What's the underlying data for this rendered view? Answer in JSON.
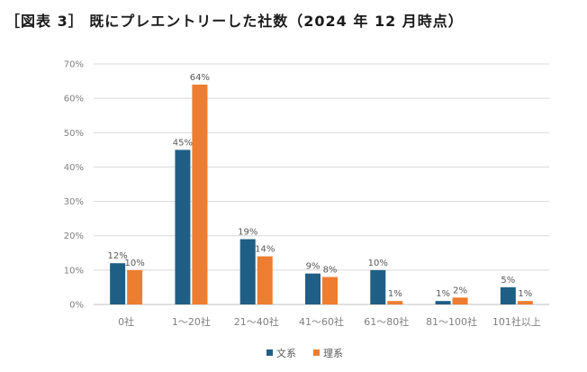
{
  "title": "［図表 3］ 既にプレエントリーした社数（2024 年 12 月時点）",
  "colors": {
    "bunkei": "#1F5F86",
    "rikei": "#ED7D31",
    "grid": "#D9D9D9",
    "axis": "#BFBFBF"
  },
  "chart_data": {
    "type": "bar",
    "title": "［図表 3］ 既にプレエントリーした社数（2024 年 12 月時点）",
    "xlabel": "",
    "ylabel": "",
    "ylim": [
      0,
      70
    ],
    "yticks": [
      "0%",
      "10%",
      "20%",
      "30%",
      "40%",
      "50%",
      "60%",
      "70%"
    ],
    "categories": [
      "0社",
      "1～20社",
      "21～40社",
      "41～60社",
      "61～80社",
      "81～100社",
      "101社以上"
    ],
    "series": [
      {
        "name": "文系",
        "values": [
          12,
          45,
          19,
          9,
          10,
          1,
          5
        ],
        "labels": [
          "12%",
          "45%",
          "19%",
          "9%",
          "10%",
          "1%",
          "5%"
        ]
      },
      {
        "name": "理系",
        "values": [
          10,
          64,
          14,
          8,
          1,
          2,
          1
        ],
        "labels": [
          "10%",
          "64%",
          "14%",
          "8%",
          "1%",
          "2%",
          "1%"
        ]
      }
    ],
    "grid": true,
    "legend": "bottom-center"
  }
}
